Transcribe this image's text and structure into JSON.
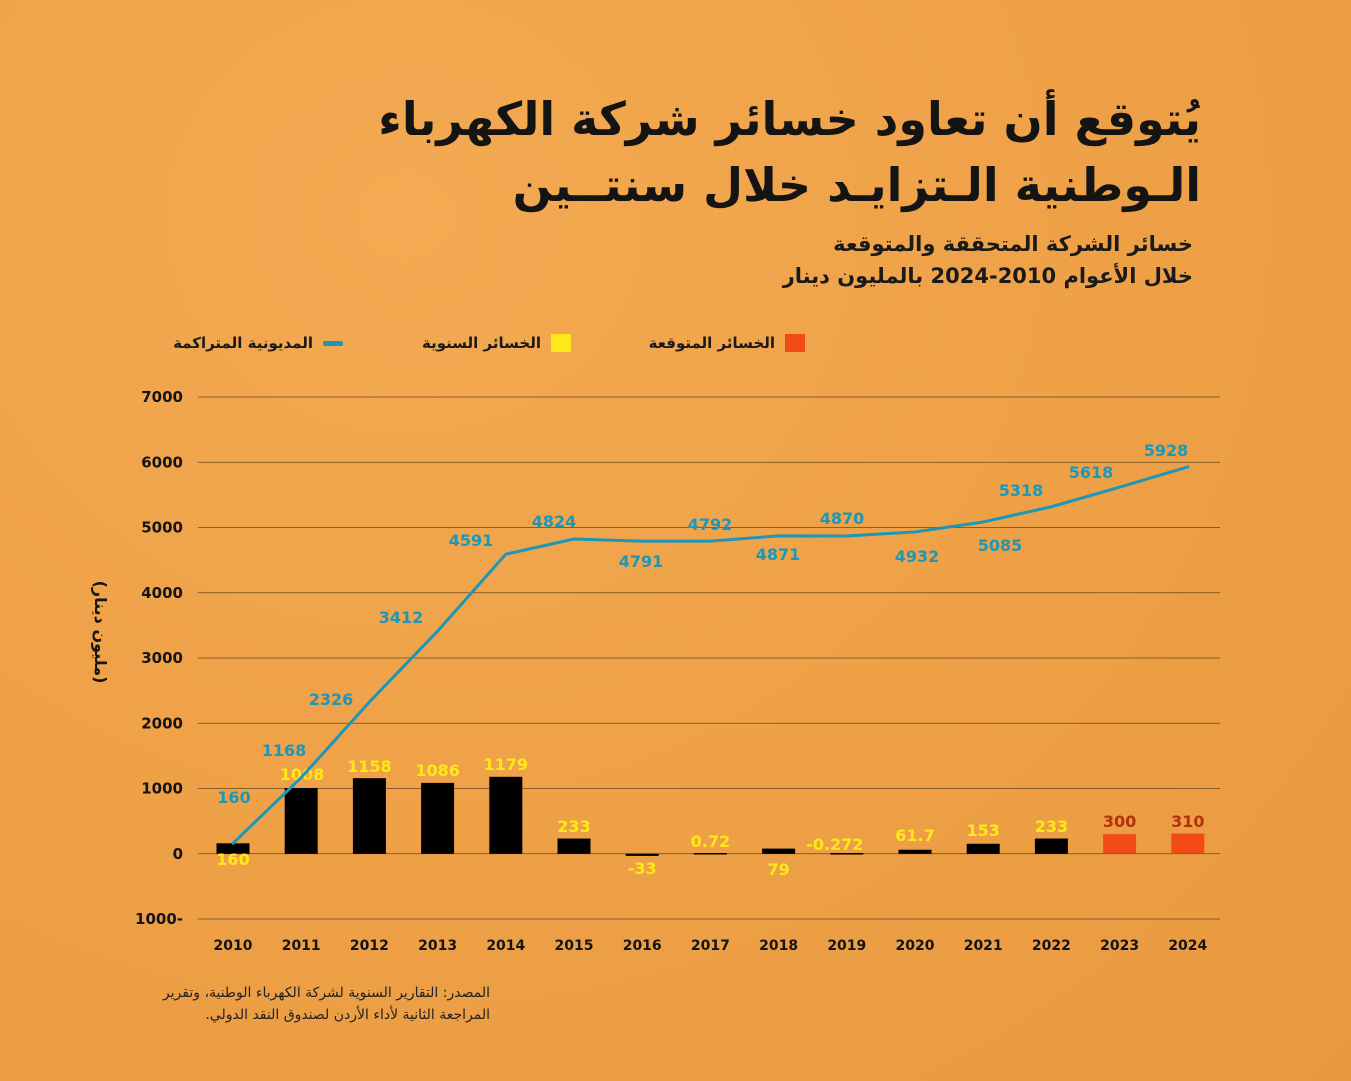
{
  "header": {
    "title_line1": "يُتوقع أن تعاود خسائر شركة الكهرباء",
    "title_line2": "الـوطنية الـتزايـد خلال سنتــين",
    "subtitle_line1": "خسائر الشركة المتحققة والمتوقعة",
    "subtitle_line2": "خلال الأعوام 2010-2024 بالمليون دينار"
  },
  "legend": {
    "expected": "الخسائر المتوقعة",
    "annual": "الخسائر السنوية",
    "debt": "المديونية المتراكمة"
  },
  "colors": {
    "bar": "#000000",
    "expected_bar": "#f24b16",
    "annual_label": "#ffe81a",
    "expected_label": "#b5300f",
    "debt_line": "#1d97b8",
    "grid": "#3a2a14"
  },
  "source": {
    "line1": "المصدر: التقارير السنوية لشركة الكهرباء الوطنية، وتقرير",
    "line2": "المراجعة الثانية لأداء الأردن لصندوق النقد الدولي."
  },
  "chart_data": {
    "type": "bar",
    "ylabel": "(مليون دينار)",
    "ylim": [
      -1000,
      7000
    ],
    "yticks": [
      7000,
      6000,
      5000,
      4000,
      3000,
      2000,
      1000,
      0,
      -1000
    ],
    "ytick_labels": [
      "7000",
      "6000",
      "5000",
      "4000",
      "3000",
      "2000",
      "1000",
      "0",
      "1000-"
    ],
    "categories": [
      "2010",
      "2011",
      "2012",
      "2013",
      "2014",
      "2015",
      "2016",
      "2017",
      "2018",
      "2019",
      "2020",
      "2021",
      "2022",
      "2023",
      "2024"
    ],
    "series": [
      {
        "name": "الخسائر السنوية",
        "type": "bar",
        "values": [
          160,
          1008,
          1158,
          1086,
          1179,
          233,
          -33,
          0.72,
          79,
          -0.272,
          61.7,
          153,
          233,
          300,
          310
        ],
        "labels": [
          "160",
          "1008",
          "1158",
          "1086",
          "1179",
          "233",
          "-33",
          "0.72",
          "79",
          "-0.272",
          "61.7",
          "153",
          "233",
          "300",
          "310"
        ],
        "expected_flags": [
          false,
          false,
          false,
          false,
          false,
          false,
          false,
          false,
          false,
          false,
          false,
          false,
          false,
          true,
          true
        ]
      },
      {
        "name": "المديونية المتراكمة",
        "type": "line",
        "values": [
          160,
          1168,
          2326,
          3412,
          4591,
          4824,
          4791,
          4792,
          4871,
          4870,
          4932,
          5085,
          5318,
          5618,
          5928
        ],
        "labels": [
          "160",
          "1168",
          "2326",
          "3412",
          "4591",
          "4824",
          "4791",
          "4792",
          "4871",
          "4870",
          "4932",
          "5085",
          "5318",
          "5618",
          "5928"
        ]
      }
    ]
  }
}
